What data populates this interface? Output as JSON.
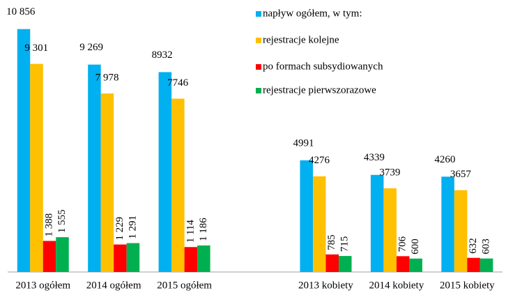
{
  "chart_data": {
    "type": "bar",
    "categories": [
      "2013 ogółem",
      "2014 ogółem",
      "2015 ogółem",
      null,
      "2013 kobiety",
      "2014 kobiety",
      "2015 kobiety"
    ],
    "series": [
      {
        "name": "napływ ogółem, w tym:",
        "color": "#00b0f0",
        "values": [
          10856,
          9269,
          8932,
          null,
          4991,
          4339,
          4260
        ],
        "value_labels": [
          "10 856",
          "9 269",
          "8932",
          null,
          "4991",
          "4339",
          "4260"
        ]
      },
      {
        "name": "rejestracje kolejne",
        "color": "#ffc000",
        "values": [
          9301,
          7978,
          7746,
          null,
          4276,
          3739,
          3657
        ],
        "value_labels": [
          "9 301",
          "7 978",
          "7746",
          null,
          "4276",
          "3739",
          "3657"
        ]
      },
      {
        "name": "po formach subsydiowanych",
        "color": "#ff0000",
        "values": [
          1388,
          1229,
          1114,
          null,
          785,
          706,
          632
        ],
        "value_labels": [
          "1 388",
          "1 229",
          "1 114",
          null,
          "785",
          "706",
          "632"
        ]
      },
      {
        "name": "rejestracje pierwszorazowe",
        "color": "#00b050",
        "values": [
          1555,
          1291,
          1186,
          null,
          715,
          600,
          603
        ],
        "value_labels": [
          "1 555",
          "1 291",
          "1 186",
          null,
          "715",
          "600",
          "603"
        ]
      }
    ],
    "ylim": [
      0,
      12000
    ],
    "legend": "upper right"
  }
}
